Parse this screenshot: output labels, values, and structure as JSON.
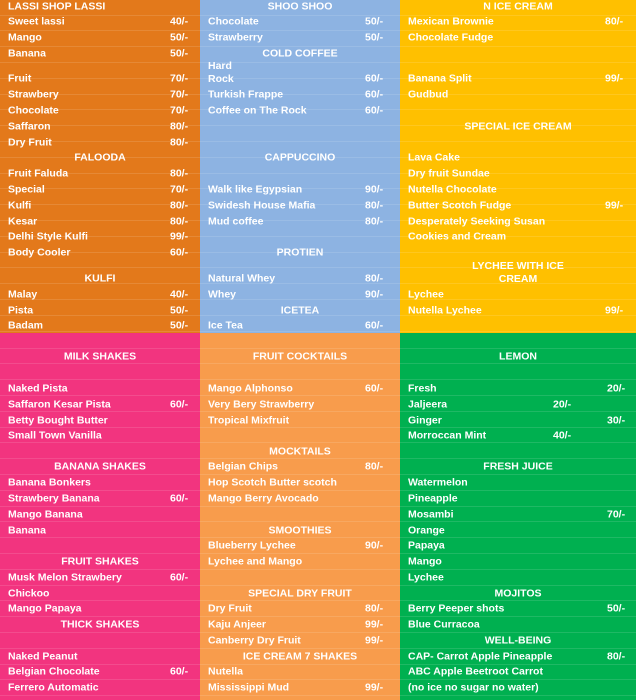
{
  "sections": [
    {
      "lines": [
        {
          "header": "LASSI SHOP LASSI"
        },
        {
          "name": "Sweet lassi",
          "price": "40/-"
        },
        {
          "name": "Mango",
          "price": "50/-"
        },
        {
          "name": "Banana",
          "price": "50/-"
        },
        {
          "name": "Fruit",
          "price": "70/-"
        },
        {
          "name": "Strawbery",
          "price": "70/-"
        },
        {
          "name": "Chocolate",
          "price": "70/-"
        },
        {
          "name": "Saffaron",
          "price": "80/-"
        },
        {
          "name": "Dry Fruit",
          "price": "80/-"
        },
        {
          "header": "FALOODA"
        },
        {
          "name": "Fruit Faluda",
          "price": "80/-"
        },
        {
          "name": "Special",
          "price": "70/-"
        },
        {
          "name": "Kulfi",
          "price": "80/-"
        },
        {
          "name": "Kesar",
          "price": "80/-"
        },
        {
          "name": "Delhi Style Kulfi",
          "price": "99/-"
        },
        {
          "name": "Body Cooler",
          "price": "60/-"
        },
        {
          "header": "KULFI"
        },
        {
          "name": "Malay",
          "price": "40/-"
        },
        {
          "name": "Pista",
          "price": "50/-"
        },
        {
          "name": "Badam",
          "price": "50/-"
        }
      ]
    },
    {
      "lines": [
        {
          "header": "SHOO SHOO"
        },
        {
          "name": "Chocolate",
          "price": "50/-"
        },
        {
          "name": "Strawberry",
          "price": "50/-"
        },
        {
          "header": "COLD COFFEE"
        },
        {
          "name": "Hard\nRock",
          "price": "60/-"
        },
        {
          "name": "Turkish Frappe",
          "price": "60/-"
        },
        {
          "name": "Coffee on The Rock",
          "price": "60/-"
        },
        {
          "header": "CAPPUCCINO"
        },
        {
          "name": "Walk like Egypsian",
          "price": "90/-"
        },
        {
          "name": "Swidesh House Mafia",
          "price": "80/-"
        },
        {
          "name": "Mud coffee",
          "price": "80/-"
        },
        {
          "header": "PROTIEN"
        },
        {
          "name": "Natural Whey",
          "price": "80/-"
        },
        {
          "name": "Whey",
          "price": "90/-"
        },
        {
          "header": "ICETEA"
        },
        {
          "name": "Ice Tea",
          "price": "60/-"
        }
      ]
    },
    {
      "lines": [
        {
          "header": "N ICE CREAM"
        },
        {
          "name": "Mexican Brownie",
          "price": "80/-"
        },
        {
          "name": "Chocolate Fudge"
        },
        {
          "name": "Banana Split",
          "price": "99/-"
        },
        {
          "name": "Gudbud"
        },
        {
          "header": "SPECIAL ICE CREAM"
        },
        {
          "name": "Lava Cake"
        },
        {
          "name": "Dry fruit Sundae"
        },
        {
          "name": "Nutella Chocolate"
        },
        {
          "name": "Butter Scotch Fudge",
          "price": "99/-"
        },
        {
          "name": "Desperately Seeking Susan"
        },
        {
          "name": "Cookies and Cream"
        },
        {
          "header": "LYCHEE WITH ICE\nCREAM"
        },
        {
          "name": "Lychee"
        },
        {
          "name": "Nutella Lychee",
          "price": "99/-"
        }
      ]
    },
    {
      "lines": [
        {
          "header": "MILK SHAKES"
        },
        {
          "name": "Naked Pista"
        },
        {
          "name": "Saffaron Kesar Pista",
          "price": "60/-"
        },
        {
          "name": "Betty Bought Butter"
        },
        {
          "name": "Small Town Vanilla"
        },
        {
          "header": "BANANA SHAKES"
        },
        {
          "name": "Banana Bonkers"
        },
        {
          "name": "Strawbery Banana",
          "price": "60/-"
        },
        {
          "name": "Mango Banana"
        },
        {
          "name": "Banana"
        },
        {
          "header": "FRUIT SHAKES"
        },
        {
          "name": "Musk Melon Strawbery",
          "price": "60/-"
        },
        {
          "name": "Chickoo"
        },
        {
          "name": "Mango Papaya"
        },
        {
          "header": "THICK SHAKES"
        },
        {
          "name": "Naked Peanut"
        },
        {
          "name": "Belgian Chocolate",
          "price": "60/-"
        },
        {
          "name": "Ferrero Automatic"
        }
      ]
    },
    {
      "lines": [
        {
          "header": "FRUIT COCKTAILS"
        },
        {
          "name": "Mango Alphonso",
          "price": "60/-"
        },
        {
          "name": "Very Bery Strawberry"
        },
        {
          "name": "Tropical Mixfruit"
        },
        {
          "header": "MOCKTAILS"
        },
        {
          "name": "Belgian Chips",
          "price": "80/-"
        },
        {
          "name": "Hop Scotch Butter  scotch"
        },
        {
          "name": "Mango Berry Avocado"
        },
        {
          "header": "SMOOTHIES"
        },
        {
          "name": "Blueberry Lychee",
          "price": "90/-"
        },
        {
          "name": "Lychee and Mango"
        },
        {
          "header": "SPECIAL DRY FRUIT"
        },
        {
          "name": "Dry Fruit",
          "price": "80/-"
        },
        {
          "name": "Kaju Anjeer",
          "price": "99/-"
        },
        {
          "name": "Canberry Dry Fruit",
          "price": "99/-"
        },
        {
          "header": "ICE CREAM 7 SHAKES"
        },
        {
          "name": "Nutella"
        },
        {
          "name": "Mississippi Mud",
          "price": "99/-"
        }
      ]
    },
    {
      "lines": [
        {
          "header": "LEMON"
        },
        {
          "name": "Fresh",
          "price": "20/-"
        },
        {
          "name": "Jaljeera",
          "price": "20/-"
        },
        {
          "name": "Ginger",
          "price": "30/-"
        },
        {
          "name": "Morroccan Mint",
          "price": "40/-"
        },
        {
          "header": "FRESH JUICE"
        },
        {
          "name": "Watermelon"
        },
        {
          "name": "Pineapple"
        },
        {
          "name": "Mosambi",
          "price": "70/-"
        },
        {
          "name": "Orange"
        },
        {
          "name": "Papaya"
        },
        {
          "name": "Mango"
        },
        {
          "name": "Lychee"
        },
        {
          "header": "MOJITOS"
        },
        {
          "name": "Berry Peeper shots",
          "price": "50/-"
        },
        {
          "name": "Blue Curracoa"
        },
        {
          "header": "WELL-BEING"
        },
        {
          "name": "CAP- Carrot Apple Pineapple",
          "price": "80/-"
        },
        {
          "name": "ABC  Apple Beetroot Carrot"
        },
        {
          "name": "(no ice no sugar no water)"
        }
      ]
    }
  ]
}
